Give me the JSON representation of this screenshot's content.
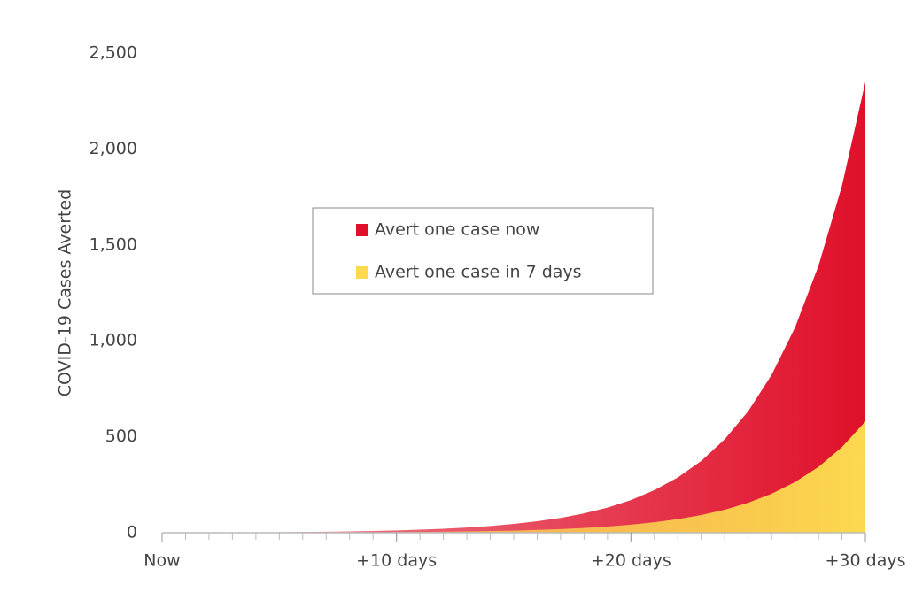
{
  "chart_data": {
    "type": "area",
    "y_label": "COVID-19 Cases Averted",
    "x": [
      0,
      1,
      2,
      3,
      4,
      5,
      6,
      7,
      8,
      9,
      10,
      11,
      12,
      13,
      14,
      15,
      16,
      17,
      18,
      19,
      20,
      21,
      22,
      23,
      24,
      25,
      26,
      27,
      28,
      29,
      30
    ],
    "series": [
      {
        "name": "Avert one case now",
        "color": "#e0102a",
        "values": [
          1,
          1,
          1,
          2,
          2,
          3,
          4,
          5,
          7,
          9,
          12,
          16,
          21,
          27,
          35,
          46,
          60,
          77,
          101,
          131,
          170,
          222,
          288,
          374,
          487,
          633,
          823,
          1070,
          1391,
          1808,
          2350
        ]
      },
      {
        "name": "Avert one case in 7 days",
        "color": "#fcd94f",
        "values": [
          0,
          0,
          0,
          0,
          0,
          0,
          0,
          1,
          2,
          2,
          3,
          4,
          5,
          7,
          9,
          11,
          15,
          19,
          25,
          32,
          42,
          55,
          71,
          92,
          120,
          156,
          203,
          264,
          343,
          446,
          580
        ]
      }
    ],
    "xlim": [
      0,
      30
    ],
    "xticks": [
      {
        "value": 0,
        "label": "Now"
      },
      {
        "value": 10,
        "label": "+10 days"
      },
      {
        "value": 20,
        "label": "+20 days"
      },
      {
        "value": 30,
        "label": "+30 days"
      }
    ],
    "ylim": [
      0,
      2500
    ],
    "yticks": [
      0,
      500,
      {
        "value": 1000,
        "label": "1,000"
      },
      {
        "value": 1500,
        "label": "1,500"
      },
      {
        "value": 2000,
        "label": "2,000"
      },
      {
        "value": 2500,
        "label": "2,500"
      }
    ],
    "grid": false
  }
}
